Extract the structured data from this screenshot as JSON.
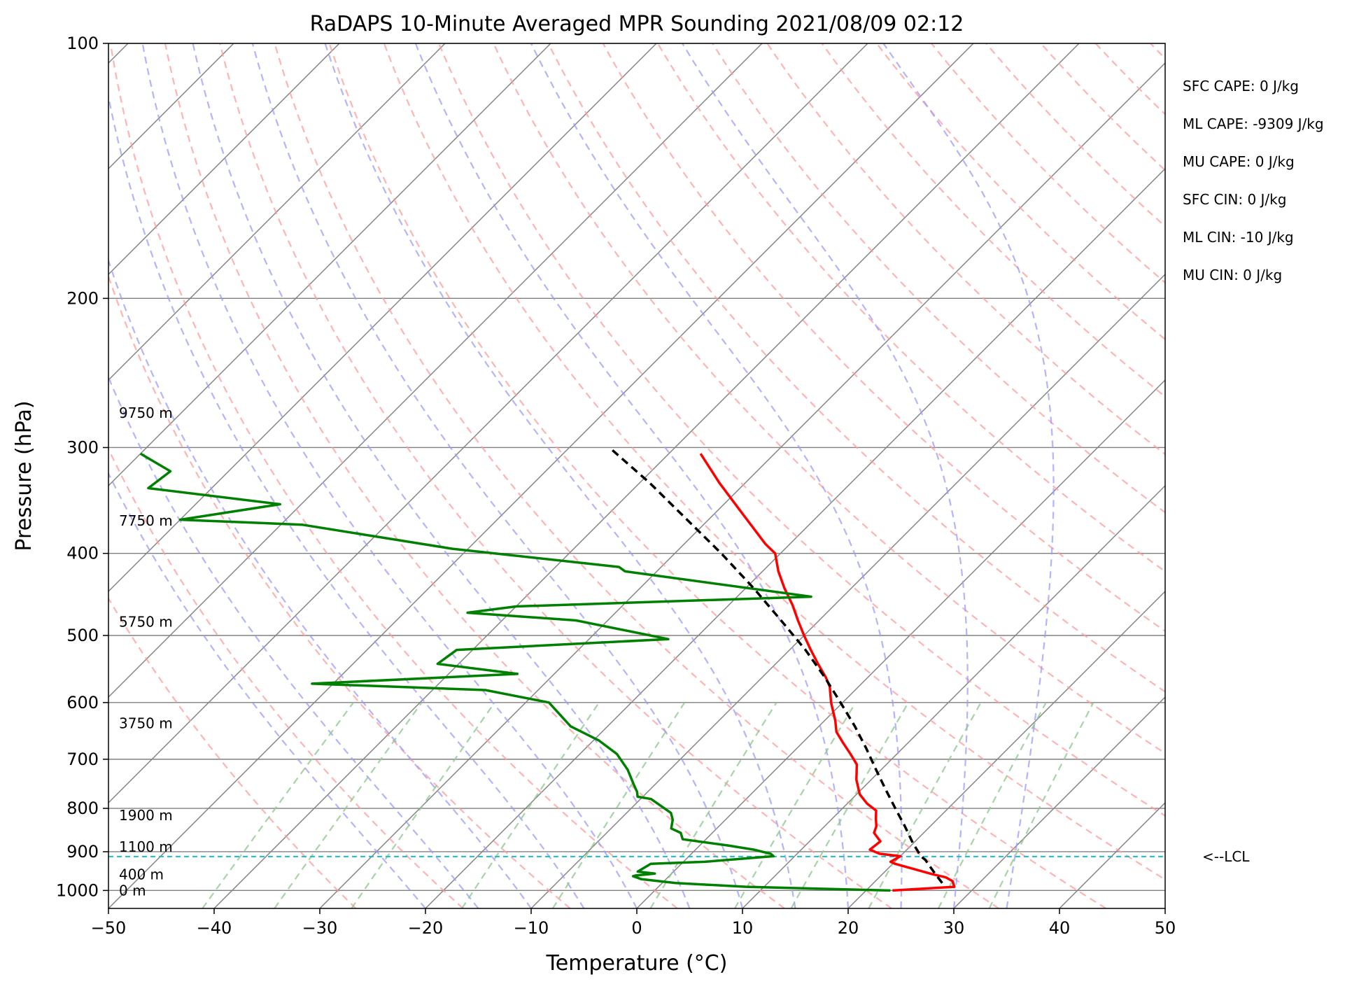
{
  "chart_data": {
    "type": "skew-t",
    "title": "RaDAPS 10-Minute Averaged MPR Sounding 2021/08/09 02:12",
    "xlabel": "Temperature (°C)",
    "ylabel": "Pressure (hPa)",
    "xlim": [
      -50,
      50
    ],
    "ylim": [
      1050,
      100
    ],
    "y_scale": "log",
    "grid": true,
    "x_ticks": [
      -50,
      -40,
      -30,
      -20,
      -10,
      0,
      10,
      20,
      30,
      40,
      50
    ],
    "x_tick_labels": [
      "−50",
      "−40",
      "−30",
      "−20",
      "−10",
      "0",
      "10",
      "20",
      "30",
      "40",
      "50"
    ],
    "y_ticks": [
      100,
      200,
      300,
      400,
      500,
      600,
      700,
      800,
      900,
      1000
    ],
    "y_tick_labels": [
      "100",
      "200",
      "300",
      "400",
      "500",
      "600",
      "700",
      "800",
      "900",
      "1000"
    ],
    "series": [
      {
        "color": "#ff0000",
        "pressure": [
          1000,
          990,
          975,
          965,
          957,
          930,
          925,
          911,
          905,
          895,
          875,
          855,
          840,
          822,
          805,
          790,
          770,
          740,
          710,
          690,
          670,
          650,
          630,
          600,
          575,
          560,
          540,
          520,
          500,
          480,
          460,
          440,
          420,
          400,
          390,
          360,
          330,
          305
        ],
        "temperature": [
          22.5,
          28.0,
          27.3,
          26.3,
          24.8,
          20.2,
          19.6,
          20.0,
          17.8,
          16.5,
          16.7,
          15.3,
          14.9,
          14.1,
          13.4,
          11.9,
          10.3,
          8.6,
          7.2,
          5.6,
          3.9,
          2.2,
          1.0,
          -1.1,
          -2.7,
          -4.0,
          -6.0,
          -8.0,
          -10.0,
          -12.0,
          -14.0,
          -16.3,
          -18.5,
          -20.5,
          -22.3,
          -27.2,
          -32.5,
          -37.0
        ]
      },
      {
        "color": "#008000",
        "pressure": [
          1000,
          990,
          980,
          970,
          962,
          960,
          955,
          950,
          930,
          925,
          911,
          905,
          895,
          885,
          870,
          855,
          845,
          825,
          810,
          780,
          775,
          765,
          750,
          720,
          690,
          665,
          640,
          600,
          580,
          570,
          555,
          540,
          520,
          505,
          480,
          470,
          462,
          450,
          420,
          415,
          395,
          370,
          365,
          350,
          335,
          320,
          305
        ],
        "temperature": [
          22.3,
          8.3,
          1.3,
          -2.3,
          -3.4,
          -3.2,
          -1.6,
          -3.4,
          -2.9,
          2.0,
          8.0,
          7.5,
          5.5,
          2.7,
          -2.2,
          -3.0,
          -4.3,
          -5.0,
          -5.8,
          -9.0,
          -10.5,
          -11.0,
          -12.0,
          -14.0,
          -16.5,
          -19.5,
          -23.5,
          -27.8,
          -35.0,
          -52.0,
          -33.5,
          -42.0,
          -41.5,
          -22.5,
          -33.0,
          -44.0,
          -40.0,
          -13.0,
          -33.0,
          -34.0,
          -51.5,
          -68.0,
          -80.0,
          -72.0,
          -86.0,
          -85.5,
          -90.0
        ]
      },
      {
        "color": "#000000",
        "style": "dashed",
        "pressure": [
          980,
          950,
          920,
          912,
          880,
          840,
          800,
          760,
          720,
          680,
          640,
          600,
          560,
          520,
          480,
          440,
          400,
          360,
          330,
          300
        ],
        "temperature": [
          26.5,
          24.6,
          22.7,
          22.0,
          20.0,
          17.6,
          15.0,
          12.3,
          9.5,
          6.6,
          3.4,
          -0.2,
          -4.1,
          -8.5,
          -13.6,
          -19.2,
          -25.6,
          -33.0,
          -39.1,
          -46.2
        ]
      }
    ],
    "lcl": {
      "pressure": 912,
      "label": "<--LCL"
    },
    "height_labels": [
      {
        "pressure": 1000,
        "label": "0 m"
      },
      {
        "pressure": 957,
        "label": "400 m"
      },
      {
        "pressure": 888,
        "label": "1100 m"
      },
      {
        "pressure": 815,
        "label": "1900 m"
      },
      {
        "pressure": 635,
        "label": "3750 m"
      },
      {
        "pressure": 482,
        "label": "5750 m"
      },
      {
        "pressure": 366,
        "label": "7750 m"
      },
      {
        "pressure": 273,
        "label": "9750 m"
      }
    ],
    "indices": [
      "SFC CAPE: 0 J/kg",
      "ML CAPE: -9309 J/kg",
      "MU CAPE: 0 J/kg",
      "SFC CIN: 0 J/kg",
      "ML CIN: -10 J/kg",
      "MU CIN: 0 J/kg"
    ],
    "background_colors": {
      "isotherm": "#808080",
      "dry_adiabat": "#ff9a9a",
      "moist_adiabat": "#9a9aff",
      "mixing_ratio": "#8fc98f",
      "lcl": "#17becf"
    }
  }
}
